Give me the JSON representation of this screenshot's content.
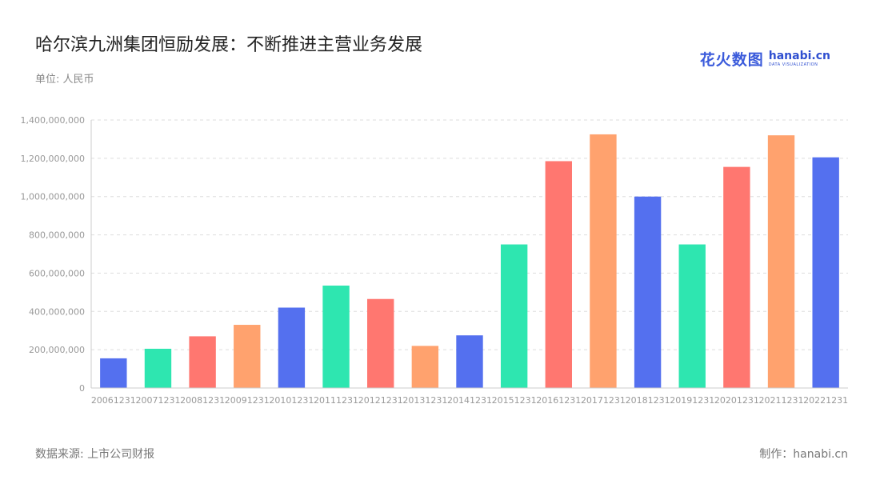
{
  "header": {
    "title": "哈尔滨九洲集团恒励发展：不断推进主营业务发展",
    "unit": "单位: 人民币"
  },
  "footer": {
    "source": "数据来源: 上市公司财报",
    "credit": "制作：hanabi.cn"
  },
  "brand": {
    "logo_cn": "花火数图",
    "logo_en": "hanabi.cn",
    "logo_tagline": "DATA VISUALIZATION"
  },
  "colors": {
    "palette": [
      "#5470ef",
      "#2ee6b0",
      "#ff7770",
      "#ffa26e"
    ],
    "grid": "#dddddd",
    "axis": "#cccccc"
  },
  "chart_data": {
    "type": "bar",
    "title": "哈尔滨九洲集团恒励发展：不断推进主营业务发展",
    "xlabel": "",
    "ylabel": "",
    "ylim": [
      0,
      1400000000
    ],
    "yticks": [
      0,
      200000000,
      400000000,
      600000000,
      800000000,
      1000000000,
      1200000000,
      1400000000
    ],
    "ytick_labels": [
      "0",
      "200,000,000",
      "400,000,000",
      "600,000,000",
      "800,000,000",
      "1,000,000,000",
      "1,200,000,000",
      "1,400,000,000"
    ],
    "grid": true,
    "legend": "none",
    "categories": [
      "20061231",
      "20071231",
      "20081231",
      "20091231",
      "20101231",
      "20111231",
      "20121231",
      "20131231",
      "20141231",
      "20151231",
      "20161231",
      "20171231",
      "20181231",
      "20191231",
      "20201231",
      "20211231",
      "20221231"
    ],
    "values": [
      155000000,
      205000000,
      270000000,
      330000000,
      420000000,
      535000000,
      465000000,
      220000000,
      275000000,
      750000000,
      1185000000,
      1325000000,
      1000000000,
      750000000,
      1155000000,
      1320000000,
      1205000000
    ],
    "bar_colors": [
      "#5470ef",
      "#2ee6b0",
      "#ff7770",
      "#ffa26e",
      "#5470ef",
      "#2ee6b0",
      "#ff7770",
      "#ffa26e",
      "#5470ef",
      "#2ee6b0",
      "#ff7770",
      "#ffa26e",
      "#5470ef",
      "#2ee6b0",
      "#ff7770",
      "#ffa26e",
      "#5470ef"
    ]
  }
}
